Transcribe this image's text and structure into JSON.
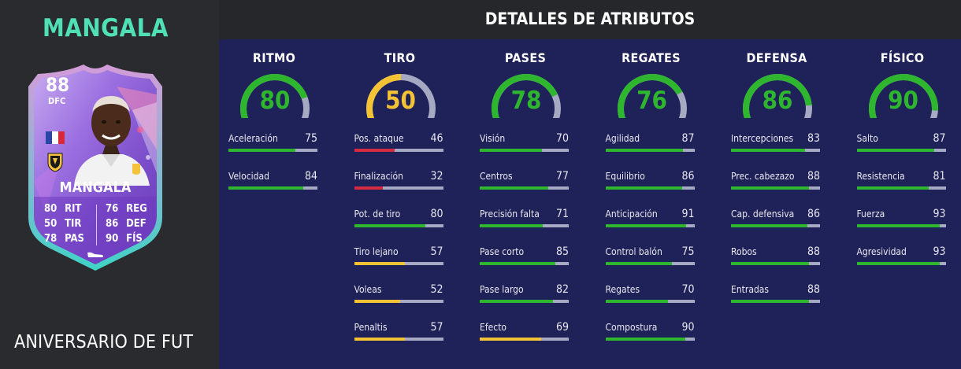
{
  "player": {
    "name": "MANGALA",
    "card_name": "MANGALA",
    "rating": "88",
    "position": "DFC",
    "promo": "ANIVERSARIO DE FUT",
    "card_stats": [
      {
        "value": "80",
        "label": "RIT"
      },
      {
        "value": "50",
        "label": "TIR"
      },
      {
        "value": "78",
        "label": "PAS"
      },
      {
        "value": "76",
        "label": "REG"
      },
      {
        "value": "86",
        "label": "DEF"
      },
      {
        "value": "90",
        "label": "FÍS"
      }
    ]
  },
  "panel": {
    "title": "DETALLES DE ATRIBUTOS"
  },
  "colors": {
    "green": "#2fb62f",
    "yellow": "#f3c235",
    "red": "#d42c3f",
    "track": "#a6a9c2",
    "accent": "#4fe0b6"
  },
  "categories": [
    {
      "name": "RITMO",
      "value": 80,
      "stats": [
        {
          "name": "Aceleración",
          "value": 75
        },
        {
          "name": "Velocidad",
          "value": 84
        }
      ]
    },
    {
      "name": "TIRO",
      "value": 50,
      "stats": [
        {
          "name": "Pos. ataque",
          "value": 46
        },
        {
          "name": "Finalización",
          "value": 32
        },
        {
          "name": "Pot. de tiro",
          "value": 80
        },
        {
          "name": "Tiro lejano",
          "value": 57
        },
        {
          "name": "Voleas",
          "value": 52
        },
        {
          "name": "Penaltis",
          "value": 57
        }
      ]
    },
    {
      "name": "PASES",
      "value": 78,
      "stats": [
        {
          "name": "Visión",
          "value": 70
        },
        {
          "name": "Centros",
          "value": 77
        },
        {
          "name": "Precisión falta",
          "value": 71
        },
        {
          "name": "Pase corto",
          "value": 85
        },
        {
          "name": "Pase largo",
          "value": 82
        },
        {
          "name": "Efecto",
          "value": 69
        }
      ]
    },
    {
      "name": "REGATES",
      "value": 76,
      "stats": [
        {
          "name": "Agilidad",
          "value": 87
        },
        {
          "name": "Equilibrio",
          "value": 86
        },
        {
          "name": "Anticipación",
          "value": 91
        },
        {
          "name": "Control balón",
          "value": 75
        },
        {
          "name": "Regates",
          "value": 70
        },
        {
          "name": "Compostura",
          "value": 90
        }
      ]
    },
    {
      "name": "DEFENSA",
      "value": 86,
      "stats": [
        {
          "name": "Intercepciones",
          "value": 83
        },
        {
          "name": "Prec. cabezazo",
          "value": 88
        },
        {
          "name": "Cap. defensiva",
          "value": 86
        },
        {
          "name": "Robos",
          "value": 88
        },
        {
          "name": "Entradas",
          "value": 88
        }
      ]
    },
    {
      "name": "FÍSICO",
      "value": 90,
      "stats": [
        {
          "name": "Salto",
          "value": 87
        },
        {
          "name": "Resistencia",
          "value": 81
        },
        {
          "name": "Fuerza",
          "value": 93
        },
        {
          "name": "Agresividad",
          "value": 93
        }
      ]
    }
  ]
}
